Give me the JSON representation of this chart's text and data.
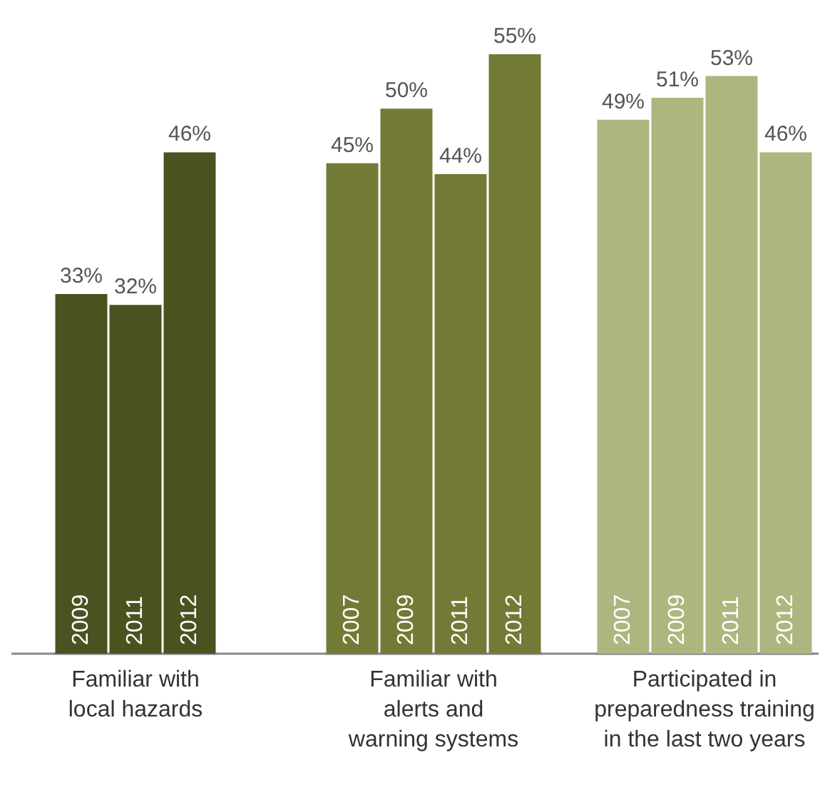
{
  "chart_data": {
    "type": "bar",
    "categories": [
      "2009",
      "2011",
      "2012",
      "2007",
      "2009",
      "2011",
      "2012",
      "2007",
      "2009",
      "2011",
      "2012"
    ],
    "values": [
      33,
      32,
      46,
      45,
      50,
      44,
      55,
      49,
      51,
      53,
      46
    ],
    "value_labels": [
      "33%",
      "32%",
      "46%",
      "45%",
      "50%",
      "44%",
      "55%",
      "49%",
      "51%",
      "53%",
      "46%"
    ],
    "colors": [
      "#4a5220",
      "#4a5220",
      "#4a5220",
      "#737a35",
      "#737a35",
      "#737a35",
      "#737a35",
      "#afb57f",
      "#afb57f",
      "#afb57f",
      "#afb57f"
    ],
    "annotations": [
      "Familiar with\nlocal hazards",
      "Familiar with\nalerts and\nwarning systems",
      "Participated in\npreparedness training\nin the last two years"
    ],
    "grid": false,
    "tick_labels": "x"
  }
}
